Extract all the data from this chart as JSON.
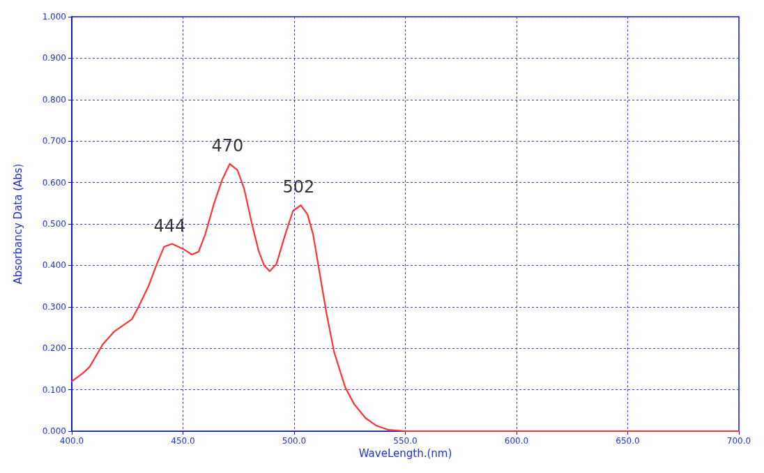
{
  "chart_data": {
    "type": "line",
    "xlabel": "WaveLength.(nm)",
    "ylabel": "Absorbancy Data (Abs)",
    "xlim": [
      400,
      700
    ],
    "xticks": [
      {
        "value": 400,
        "label": "400.0"
      },
      {
        "value": 450,
        "label": "450.0"
      },
      {
        "value": 500,
        "label": "500.0"
      },
      {
        "value": 550,
        "label": "550.0"
      },
      {
        "value": 600,
        "label": "600.0"
      },
      {
        "value": 650,
        "label": "650.0"
      },
      {
        "value": 700,
        "label": "700.0"
      }
    ],
    "ylim": [
      0,
      1
    ],
    "yticks": [
      {
        "value": 0,
        "label": "0.000"
      },
      {
        "value": 0.1,
        "label": "0.100"
      },
      {
        "value": 0.2,
        "label": "0.200"
      },
      {
        "value": 0.3,
        "label": "0.300"
      },
      {
        "value": 0.4,
        "label": "0.400"
      },
      {
        "value": 0.5,
        "label": "0.500"
      },
      {
        "value": 0.6,
        "label": "0.600"
      },
      {
        "value": 0.7,
        "label": "0.700"
      },
      {
        "value": 0.8,
        "label": "0.800"
      },
      {
        "value": 0.9,
        "label": "0.900"
      },
      {
        "value": 1,
        "label": "1.000"
      }
    ],
    "grid": true,
    "marker": "none",
    "line_style": "solid",
    "series": [
      {
        "color": "#ff3333",
        "x": [
          400,
          405,
          408,
          414,
          419,
          427,
          430,
          434.5,
          438,
          441.5,
          445,
          450,
          454,
          457,
          460,
          464,
          467.5,
          471,
          474.5,
          477.5,
          481,
          484,
          486.5,
          489,
          492,
          496,
          499.5,
          503,
          506,
          508.5,
          511.5,
          514.5,
          518,
          523,
          527,
          532,
          537,
          542.5,
          550,
          600,
          650,
          700
        ],
        "values": [
          0.12,
          0.14,
          0.155,
          0.21,
          0.24,
          0.27,
          0.3,
          0.35,
          0.4,
          0.445,
          0.452,
          0.44,
          0.426,
          0.433,
          0.475,
          0.55,
          0.605,
          0.645,
          0.63,
          0.585,
          0.5,
          0.435,
          0.4,
          0.386,
          0.403,
          0.475,
          0.532,
          0.545,
          0.523,
          0.475,
          0.38,
          0.285,
          0.19,
          0.105,
          0.065,
          0.032,
          0.013,
          0.003,
          0,
          0,
          0,
          0
        ]
      }
    ],
    "annotations": [
      {
        "text": "444",
        "x": 444,
        "y": 0.452
      },
      {
        "text": "470",
        "x": 470,
        "y": 0.645
      },
      {
        "text": "502",
        "x": 502,
        "y": 0.545
      }
    ]
  }
}
